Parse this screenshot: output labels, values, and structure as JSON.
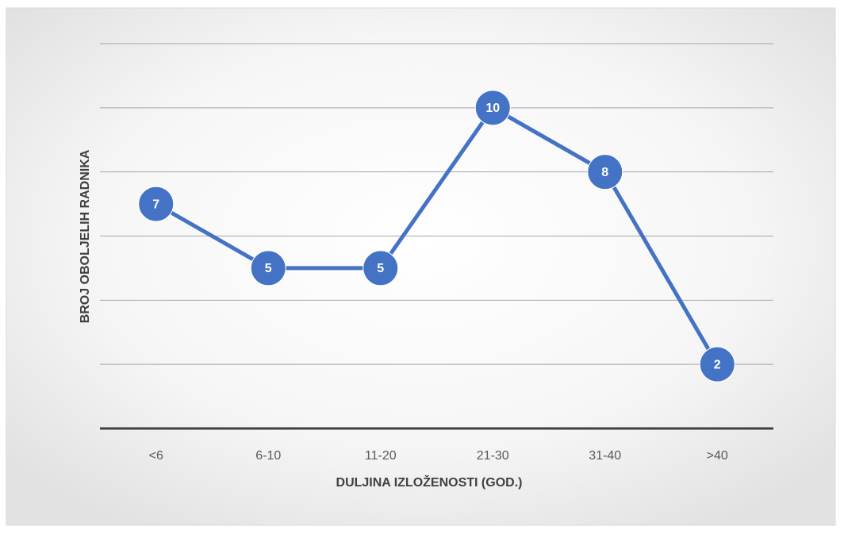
{
  "chart_data": {
    "type": "line",
    "x_label": "DULJINA IZLOŽENOSTI (GOD.)",
    "y_label": "BROJ OBOLJELIH RADNIKA",
    "categories": [
      "<6",
      "6-10",
      "11-20",
      "21-30",
      "31-40",
      ">40"
    ],
    "series": [
      {
        "name": "Broj oboljelih radnika",
        "color": "#4472c4",
        "values": [
          7,
          5,
          5,
          10,
          8,
          2
        ]
      }
    ],
    "ylim": [
      0,
      12
    ],
    "yticks": [
      0,
      2,
      4,
      6,
      8,
      10,
      12
    ],
    "grid": true,
    "legend": false,
    "data_labels": true
  }
}
